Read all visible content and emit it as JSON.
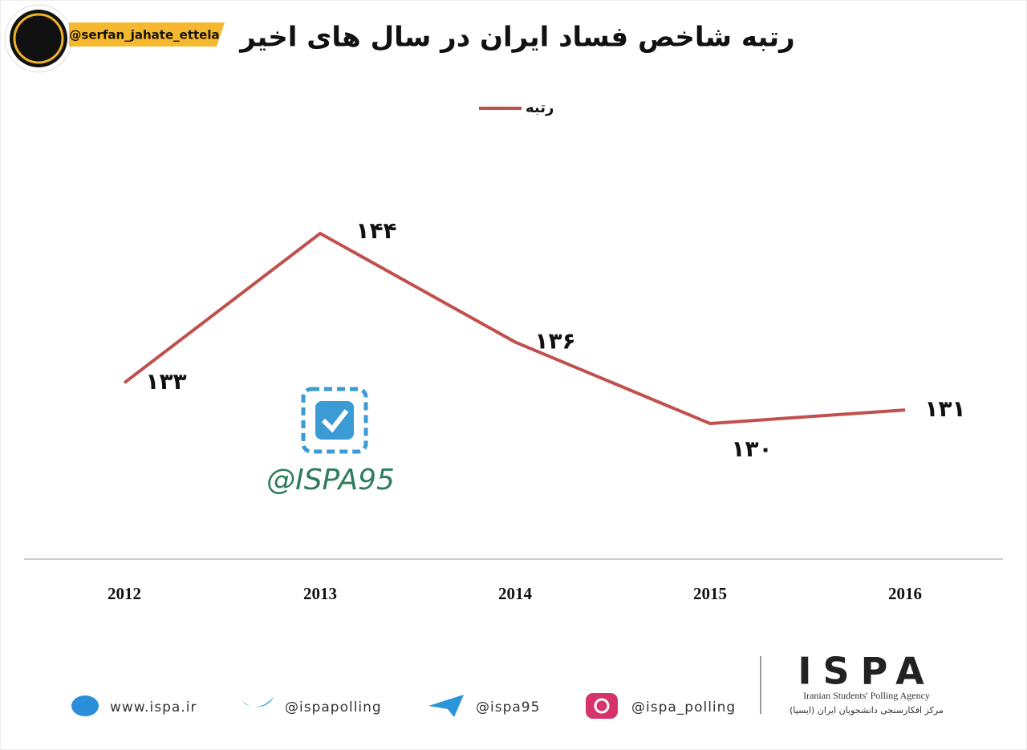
{
  "chart_data": {
    "type": "line",
    "title": "رتبه شاخص فساد ایران در سال های اخیر",
    "categories": [
      "2012",
      "2013",
      "2014",
      "2015",
      "2016"
    ],
    "series": [
      {
        "name": "رتبه",
        "color": "#c0504d",
        "values": [
          133,
          144,
          136,
          130,
          131
        ],
        "value_labels": [
          "۱۳۳",
          "۱۴۴",
          "۱۳۶",
          "۱۳۰",
          "۱۳۱"
        ]
      }
    ],
    "legend": "top"
  },
  "header": {
    "handle": "@serfan_jahate_ettela"
  },
  "watermark": "@ISPA95",
  "footer": {
    "links": [
      "www.ispa.ir",
      "@ispapolling",
      "@ispa95",
      "@ispa_polling"
    ],
    "brand": "ISPA",
    "brand_en": "Iranian Students' Polling Agency",
    "brand_fa": "مرکز افکارسنجی دانشجویان ایران (ایسپا)"
  }
}
